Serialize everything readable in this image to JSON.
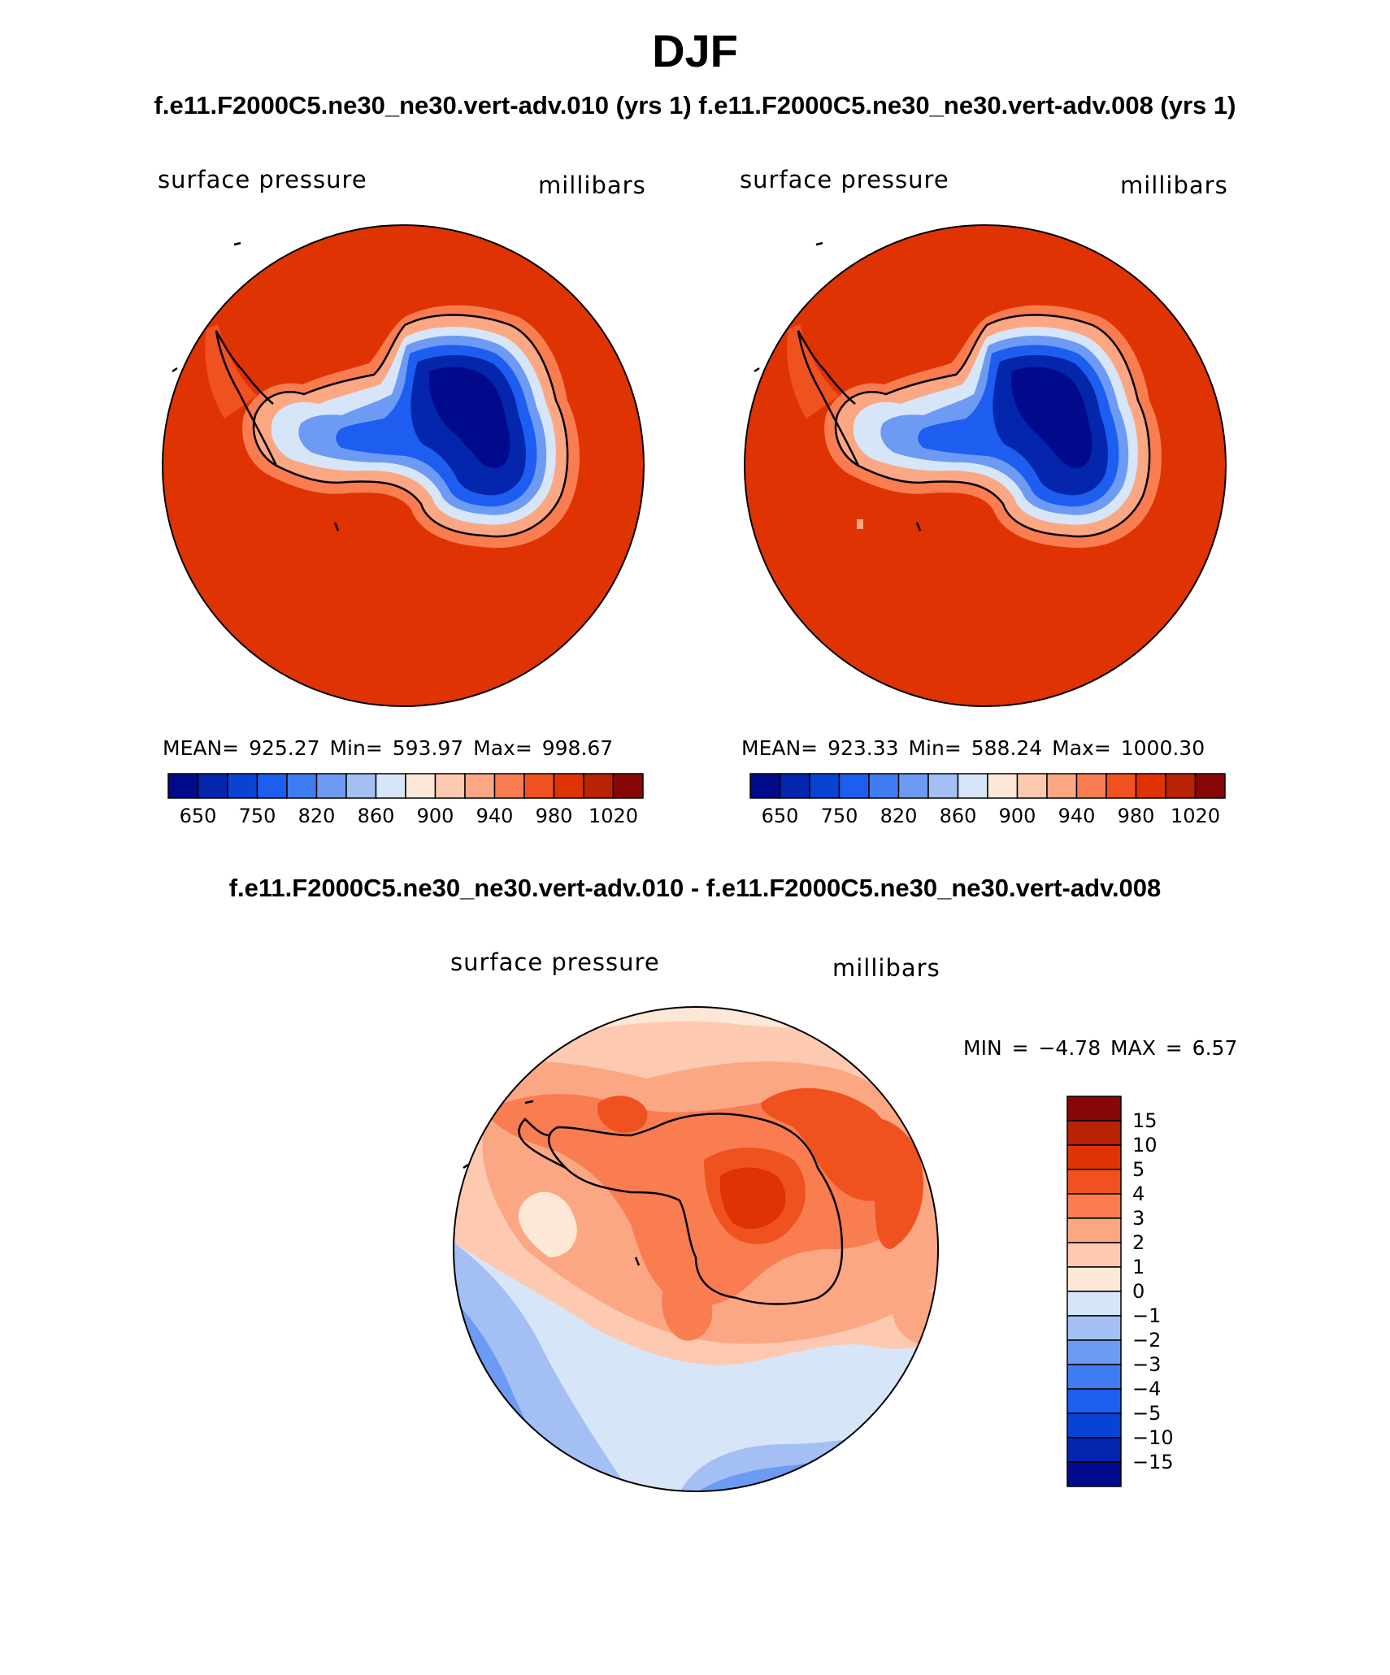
{
  "header": {
    "title": "DJF",
    "subtitle": "f.e11.F2000C5.ne30_ne30.vert-adv.010 (yrs 1) f.e11.F2000C5.ne30_ne30.vert-adv.008 (yrs 1)",
    "diff_title": "f.e11.F2000C5.ne30_ne30.vert-adv.010 - f.e11.F2000C5.ne30_ne30.vert-adv.008"
  },
  "panels": [
    {
      "variable": "surface pressure",
      "units": "millibars",
      "stats": "MEAN= 925.27   Min= 593.97   Max= 998.67",
      "colorbar_colors": [
        "#020a8c",
        "#0326ad",
        "#0843d4",
        "#1d5ef0",
        "#3f7cf2",
        "#6d9af3",
        "#a3bff4",
        "#d6e6f8",
        "#fde7d6",
        "#fdc9b0",
        "#fca784",
        "#f97d51",
        "#f0521f",
        "#e03303",
        "#b82205",
        "#870708"
      ],
      "colorbar_labels": [
        "650",
        "750",
        "820",
        "860",
        "900",
        "940",
        "980",
        "1020"
      ]
    },
    {
      "variable": "surface pressure",
      "units": "millibars",
      "stats": "MEAN= 923.33   Min= 588.24   Max= 1000.30",
      "colorbar_colors": [
        "#020a8c",
        "#0326ad",
        "#0843d4",
        "#1d5ef0",
        "#3f7cf2",
        "#6d9af3",
        "#a3bff4",
        "#d6e6f8",
        "#fde7d6",
        "#fdc9b0",
        "#fca784",
        "#f97d51",
        "#f0521f",
        "#e03303",
        "#b82205",
        "#870708"
      ],
      "colorbar_labels": [
        "650",
        "750",
        "820",
        "860",
        "900",
        "940",
        "980",
        "1020"
      ]
    },
    {
      "variable": "surface pressure",
      "units": "millibars",
      "stats": "MIN =   −4.78 MAX =    6.57",
      "colorbar_colors": [
        "#870708",
        "#b82205",
        "#e03303",
        "#f0521f",
        "#f97d51",
        "#fca784",
        "#fdc9b0",
        "#fde7d6",
        "#d6e6f8",
        "#a3bff4",
        "#6d9af3",
        "#3f7cf2",
        "#1d5ef0",
        "#0843d4",
        "#0326ad",
        "#020a8c"
      ],
      "colorbar_labels": [
        "15",
        "10",
        "5",
        "4",
        "3",
        "2",
        "1",
        "0",
        "−1",
        "−2",
        "−3",
        "−4",
        "−5",
        "−10",
        "−15"
      ]
    }
  ]
}
